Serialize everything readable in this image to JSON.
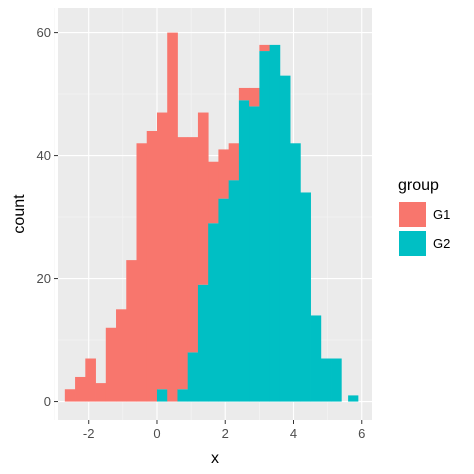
{
  "chart_data": {
    "type": "bar",
    "subtype": "stacked-histogram",
    "title": "",
    "xlabel": "x",
    "ylabel": "count",
    "xlim": [
      -2.9,
      6.3
    ],
    "ylim": [
      -3,
      64
    ],
    "x_ticks": [
      -2,
      0,
      2,
      4,
      6
    ],
    "y_ticks": [
      0,
      20,
      40,
      60
    ],
    "grid": "on",
    "background": "#ebebeb",
    "legend": {
      "title": "group",
      "placement": "right"
    },
    "bin_width": 0.3,
    "bin_starts": [
      -2.7,
      -2.4,
      -2.1,
      -1.8,
      -1.5,
      -1.2,
      -0.9,
      -0.6,
      -0.3,
      0.0,
      0.3,
      0.6,
      0.9,
      1.2,
      1.5,
      1.8,
      2.1,
      2.4,
      2.7,
      3.0,
      3.3,
      3.6,
      3.9,
      4.2,
      4.5,
      4.8,
      5.1,
      5.4
    ],
    "series": [
      {
        "name": "G2",
        "color": "#00bfc4",
        "values": [
          0,
          0,
          0,
          0,
          0,
          0,
          0,
          0,
          0,
          2,
          0,
          2,
          8,
          19,
          29,
          33,
          36,
          49,
          48,
          57,
          58,
          53,
          42,
          34,
          14,
          7,
          7,
          0
        ]
      },
      {
        "name": "G1",
        "color": "#f8766d",
        "values": [
          2,
          4,
          7,
          3,
          12,
          15,
          23,
          42,
          44,
          45,
          60,
          41,
          35,
          28,
          10,
          8,
          6,
          2,
          3,
          1,
          0,
          0,
          0,
          0,
          0,
          0,
          0,
          0
        ]
      }
    ],
    "extra_bars": [
      {
        "series": "G2",
        "x_start": 5.6,
        "value": 1
      }
    ],
    "legend_entries": [
      {
        "label": "G1",
        "color": "#f8766d"
      },
      {
        "label": "G2",
        "color": "#00bfc4"
      }
    ]
  }
}
